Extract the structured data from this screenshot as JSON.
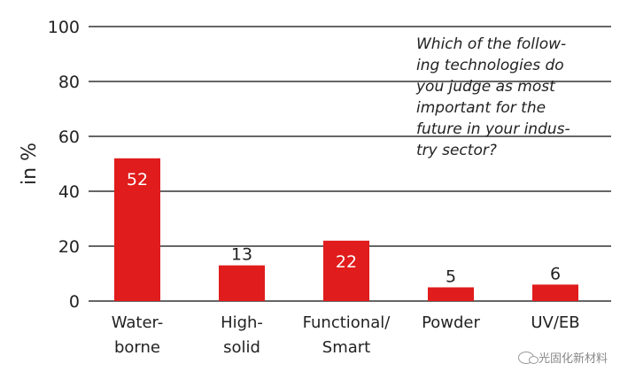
{
  "chart_data": {
    "type": "bar",
    "categories": [
      [
        "Water-",
        "borne"
      ],
      [
        "High-",
        "solid"
      ],
      [
        "Functional/",
        "Smart"
      ],
      [
        "Powder"
      ],
      [
        "UV/EB"
      ]
    ],
    "values": [
      52,
      13,
      22,
      5,
      6
    ],
    "data_labels": [
      "52",
      "13",
      "22",
      "5",
      "6"
    ],
    "ylabel": "in %",
    "ylim": [
      0,
      100
    ],
    "yticks": [
      0,
      20,
      40,
      60,
      80,
      100
    ],
    "grid": true,
    "bar_color": "#e01c1c",
    "annotation": "Which of the follow-\ning technologies do\nyou judge as most\nimportant for the\nfuture in your indus-\ntry sector?"
  },
  "watermark": {
    "text": "光固化新材料",
    "icon": "wechat-icon"
  }
}
